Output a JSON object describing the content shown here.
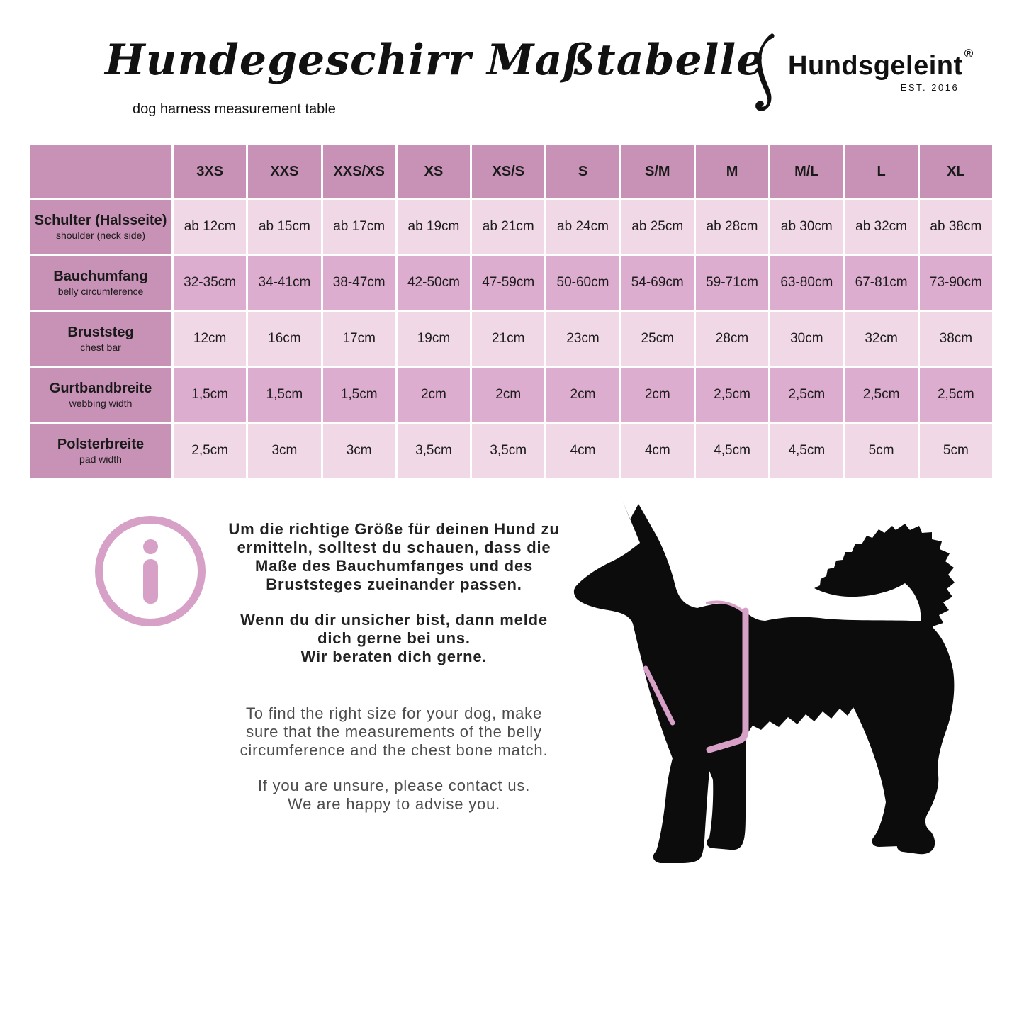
{
  "page": {
    "title": "Hundegeschirr Maßtabelle",
    "subtitle": "dog harness measurement table"
  },
  "logo": {
    "brand": "Hundsgeleint",
    "registered": "®",
    "established": "EST. 2016",
    "icon": "leash-hook-icon"
  },
  "table": {
    "corner_label": "",
    "sizes": [
      "3XS",
      "XXS",
      "XXS/XS",
      "XS",
      "XS/S",
      "S",
      "S/M",
      "M",
      "M/L",
      "L",
      "XL"
    ],
    "rows": [
      {
        "label": "Schulter (Halsseite)",
        "sublabel": "shoulder (neck side)",
        "shade": "light",
        "values": [
          "ab 12cm",
          "ab 15cm",
          "ab 17cm",
          "ab 19cm",
          "ab 21cm",
          "ab 24cm",
          "ab 25cm",
          "ab 28cm",
          "ab 30cm",
          "ab 32cm",
          "ab 38cm"
        ]
      },
      {
        "label": "Bauchumfang",
        "sublabel": "belly circumference",
        "shade": "medium",
        "values": [
          "32-35cm",
          "34-41cm",
          "38-47cm",
          "42-50cm",
          "47-59cm",
          "50-60cm",
          "54-69cm",
          "59-71cm",
          "63-80cm",
          "67-81cm",
          "73-90cm"
        ]
      },
      {
        "label": "Bruststeg",
        "sublabel": "chest bar",
        "shade": "light",
        "values": [
          "12cm",
          "16cm",
          "17cm",
          "19cm",
          "21cm",
          "23cm",
          "25cm",
          "28cm",
          "30cm",
          "32cm",
          "38cm"
        ]
      },
      {
        "label": "Gurtbandbreite",
        "sublabel": "webbing width",
        "shade": "medium",
        "values": [
          "1,5cm",
          "1,5cm",
          "1,5cm",
          "2cm",
          "2cm",
          "2cm",
          "2cm",
          "2,5cm",
          "2,5cm",
          "2,5cm",
          "2,5cm"
        ]
      },
      {
        "label": "Polsterbreite",
        "sublabel": "pad width",
        "shade": "light",
        "values": [
          "2,5cm",
          "3cm",
          "3cm",
          "3,5cm",
          "3,5cm",
          "4cm",
          "4cm",
          "4,5cm",
          "4,5cm",
          "5cm",
          "5cm"
        ]
      }
    ]
  },
  "info": {
    "icon": "info-icon",
    "de_paragraph1_lines": [
      "Um die richtige Größe für deinen Hund zu",
      "ermitteln, solltest du schauen, dass die",
      "Maße des Bauchumfanges und des",
      "Bruststeges zueinander passen."
    ],
    "de_paragraph2_lines": [
      "Wenn du dir unsicher bist, dann melde",
      "dich gerne bei uns.",
      "Wir beraten dich gerne."
    ],
    "en_paragraph1_lines": [
      "To find the right size for your dog, make",
      "sure that the measurements of the belly",
      "circumference and the chest bone match."
    ],
    "en_paragraph2_lines": [
      "If you are unsure, please contact us.",
      "We are happy to advise you."
    ]
  },
  "dog": {
    "description": "dog-silhouette-with-harness"
  },
  "colors": {
    "accent-pink": "#d7a0c7",
    "header-bg": "#c891b6",
    "cell-light": "#f1d8e6",
    "cell-medium": "#ddadcf",
    "text-dark": "#1a1a1a",
    "text-gray": "#4d4d4d",
    "dog-black": "#0c0c0c"
  }
}
